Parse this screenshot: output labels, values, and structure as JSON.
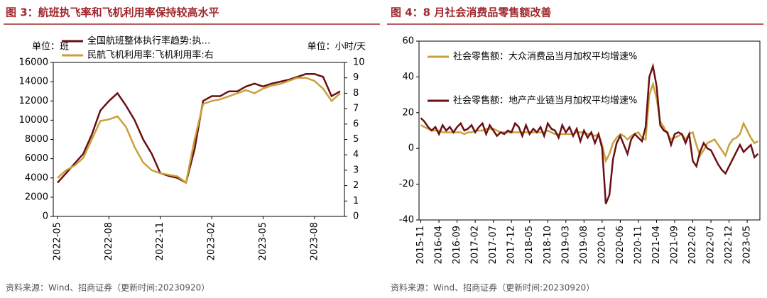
{
  "chart_data": [
    {
      "type": "line",
      "title": "图 3：航班执飞率和飞机利用率保持较高水平",
      "source": "资料来源：Wind、招商证券（更新时间:20230920）",
      "y_label": "单位：班",
      "y2_label": "单位：小时/天",
      "legend": "upper left",
      "categories": [
        "2022-05",
        null,
        null,
        null,
        null,
        null,
        "2022-08",
        null,
        null,
        null,
        null,
        null,
        "2022-11",
        null,
        null,
        null,
        null,
        null,
        "2023-02",
        null,
        null,
        null,
        null,
        null,
        "2023-05",
        null,
        null,
        null,
        null,
        null,
        "2023-08",
        null,
        null,
        null
      ],
      "ylim": [
        0,
        16000
      ],
      "yticks": [
        0,
        2000,
        4000,
        6000,
        8000,
        10000,
        12000,
        14000,
        16000
      ],
      "y2lim": [
        0,
        10
      ],
      "y2ticks": [
        0,
        1,
        2,
        3,
        4,
        5,
        6,
        7,
        8,
        9,
        10
      ],
      "series": [
        {
          "name": "全国航班整体执行率趋势:执…",
          "color": "#6b0f14",
          "values": [
            3500,
            4500,
            5500,
            6500,
            8500,
            11000,
            12000,
            12800,
            11500,
            10000,
            8000,
            6500,
            4500,
            4200,
            4000,
            3500,
            7000,
            12000,
            12500,
            12500,
            13000,
            13000,
            13500,
            13800,
            13500,
            13800,
            14000,
            14200,
            14500,
            14800,
            14800,
            14500,
            12500,
            13000
          ]
        },
        {
          "name": "民航飞机利用率:飞机利用率:右",
          "color": "#c9a13b",
          "axis": "y2",
          "values": [
            2.5,
            3.0,
            3.3,
            3.8,
            5.0,
            6.2,
            6.3,
            6.5,
            5.8,
            4.5,
            3.5,
            3.0,
            2.8,
            2.7,
            2.6,
            2.2,
            5.0,
            7.3,
            7.5,
            7.6,
            7.8,
            8.0,
            8.2,
            8.0,
            8.3,
            8.5,
            8.6,
            8.8,
            9.0,
            9.0,
            8.8,
            8.3,
            7.5,
            8.0
          ]
        }
      ]
    },
    {
      "type": "line",
      "title": "图 4：8 月社会消费品零售额改善",
      "source": "资料来源：Wind、招商证券（更新时间:20230920）",
      "legend": "upper left",
      "categories": [
        "2015-11",
        null,
        null,
        null,
        null,
        "2016-04",
        null,
        null,
        null,
        null,
        "2016-09",
        null,
        null,
        null,
        null,
        "2017-02",
        null,
        null,
        null,
        null,
        "2017-07",
        null,
        null,
        null,
        null,
        "2017-12",
        null,
        null,
        null,
        null,
        "2018-05",
        null,
        null,
        null,
        null,
        "2018-10",
        null,
        null,
        null,
        null,
        "2019-03",
        null,
        null,
        null,
        null,
        "2019-08",
        null,
        null,
        null,
        null,
        "2020-01",
        null,
        null,
        null,
        null,
        "2020-06",
        null,
        null,
        null,
        null,
        "2020-11",
        null,
        null,
        null,
        null,
        "2021-04",
        null,
        null,
        null,
        null,
        "2021-09",
        null,
        null,
        null,
        null,
        "2022-02",
        null,
        null,
        null,
        null,
        "2022-07",
        null,
        null,
        null,
        null,
        "2022-12",
        null,
        null,
        null,
        null,
        "2023-05",
        null,
        null,
        null
      ],
      "ylim": [
        -40,
        60
      ],
      "yticks": [
        -40,
        -20,
        0,
        20,
        40,
        60
      ],
      "series": [
        {
          "name": "社会零售额：大众消费品当月加权平均增速%",
          "color": "#c9a13b",
          "values": [
            13,
            12,
            11,
            10,
            10,
            10,
            9,
            9,
            9,
            9,
            9,
            9,
            8,
            9,
            9,
            10,
            10,
            10,
            11,
            11,
            11,
            10,
            9,
            9,
            9,
            9,
            9,
            9,
            9,
            9,
            9,
            9,
            9,
            9,
            9,
            10,
            9,
            8,
            8,
            8,
            8,
            8,
            8,
            9,
            9,
            9,
            8,
            8,
            7,
            8,
            2,
            -7,
            -3,
            3,
            6,
            8,
            7,
            5,
            7,
            8,
            9,
            6,
            5,
            30,
            36,
            28,
            15,
            12,
            8,
            5,
            6,
            7,
            8,
            5,
            8,
            9,
            2,
            -4,
            -1,
            3,
            4,
            5,
            2,
            -1,
            -4,
            2,
            5,
            6,
            8,
            14,
            10,
            6,
            3,
            4
          ]
        },
        {
          "name": "社会零售额：地产产业链当月加权平均增速%",
          "color": "#6b0f14",
          "values": [
            17,
            15,
            12,
            10,
            12,
            8,
            13,
            10,
            12,
            9,
            12,
            14,
            10,
            11,
            13,
            9,
            12,
            14,
            8,
            13,
            10,
            7,
            9,
            8,
            10,
            9,
            14,
            12,
            7,
            13,
            8,
            11,
            9,
            12,
            7,
            14,
            11,
            10,
            6,
            13,
            9,
            12,
            7,
            11,
            4,
            10,
            6,
            9,
            3,
            8,
            0,
            -31,
            -26,
            -6,
            3,
            7,
            2,
            -3,
            5,
            8,
            6,
            4,
            12,
            40,
            46,
            35,
            13,
            10,
            9,
            2,
            8,
            9,
            8,
            3,
            8,
            -7,
            -10,
            -2,
            3,
            0,
            -1,
            -5,
            -9,
            -12,
            -14,
            -10,
            -6,
            -2,
            2,
            -2,
            0,
            2,
            -5,
            -3
          ]
        }
      ]
    }
  ]
}
